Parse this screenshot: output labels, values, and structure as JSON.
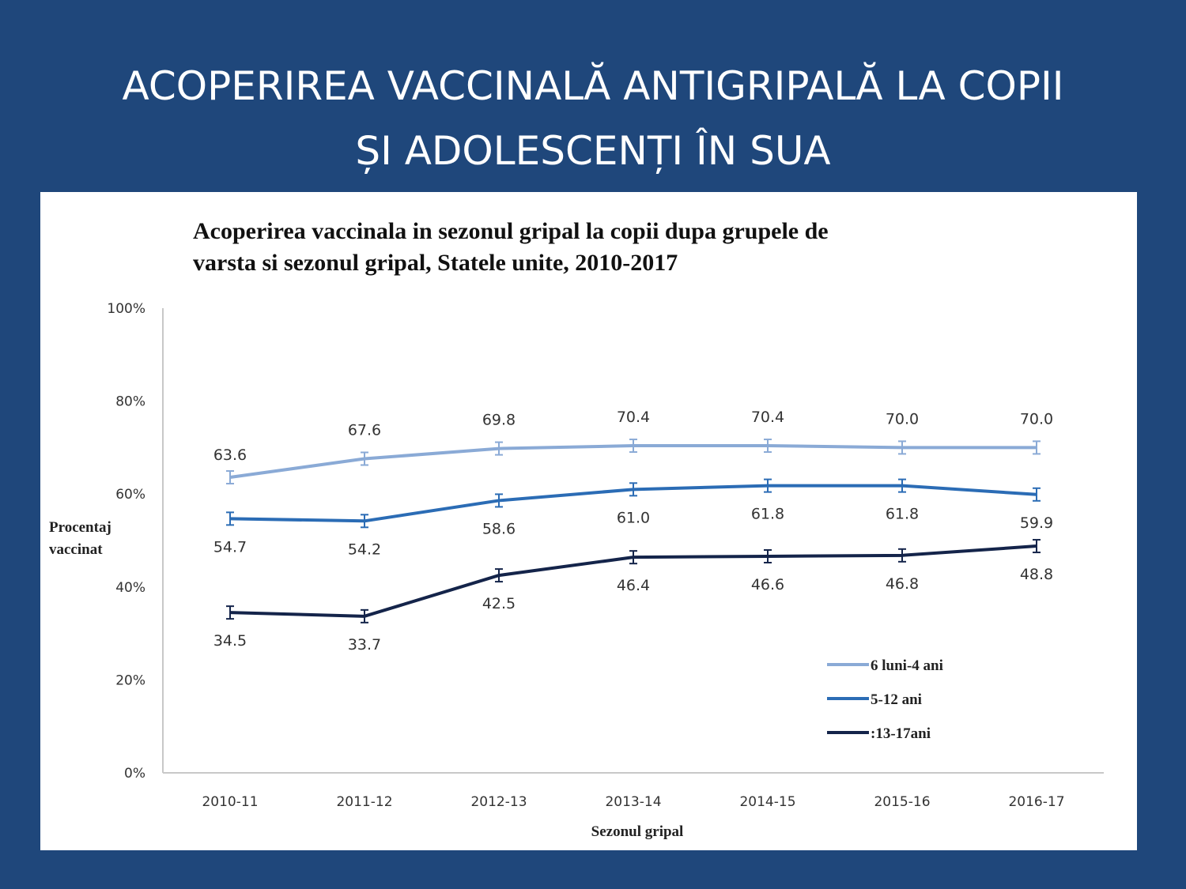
{
  "slide": {
    "title_line1": "ACOPERIREA  VACCINALĂ  ANTIGRIPALĂ  LA COPII",
    "title_line2": "ȘI ADOLESCENȚI ÎN SUA"
  },
  "chart_data": {
    "type": "line",
    "title_line1": "Acoperirea vaccinala in sezonul gripal la copii dupa grupele de",
    "title_line2": "varsta si sezonul gripal,  Statele unite, 2010-2017",
    "xlabel": "Sezonul gripal",
    "ylabel_line1": "Procentaj",
    "ylabel_line2": "vaccinat",
    "categories": [
      "2010-11",
      "2011-12",
      "2012-13",
      "2013-14",
      "2014-15",
      "2015-16",
      "2016-17"
    ],
    "ylim": [
      0,
      100
    ],
    "yticks": [
      "0%",
      "20%",
      "40%",
      "60%",
      "80%",
      "100%"
    ],
    "grid": false,
    "legend_position": "bottom-right",
    "error_bars": true,
    "series": [
      {
        "name": "6 luni-4 ani",
        "color": "#8aaad6",
        "values": [
          63.6,
          67.6,
          69.8,
          70.4,
          70.4,
          70.0,
          70.0
        ],
        "labels": [
          "63.6",
          "67.6",
          "69.8",
          "70.4",
          "70.4",
          "70.0",
          "70.0"
        ],
        "label_position": "above"
      },
      {
        "name": "5-12 ani",
        "color": "#2b6cb5",
        "values": [
          54.7,
          54.2,
          58.6,
          61.0,
          61.8,
          61.8,
          59.9
        ],
        "labels": [
          "54.7",
          "54.2",
          "58.6",
          "61.0",
          "61.8",
          "61.8",
          "59.9"
        ],
        "label_position": "below"
      },
      {
        "name": ":13-17ani",
        "color": "#14244a",
        "values": [
          34.5,
          33.7,
          42.5,
          46.4,
          46.6,
          46.8,
          48.8
        ],
        "labels": [
          "34.5",
          "33.7",
          "42.5",
          "46.4",
          "46.6",
          "46.8",
          "48.8"
        ],
        "label_position": "below"
      }
    ]
  }
}
